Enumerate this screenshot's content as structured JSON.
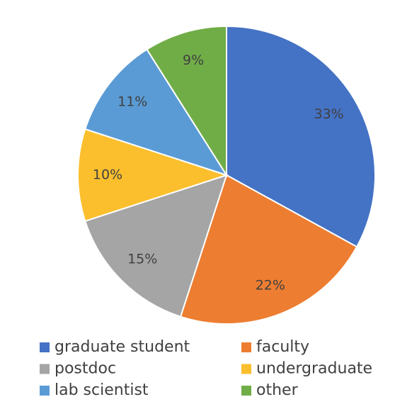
{
  "chart_data": {
    "type": "pie",
    "categories": [
      "graduate student",
      "faculty",
      "postdoc",
      "undergraduate",
      "lab scientist",
      "other"
    ],
    "values": [
      33,
      22,
      15,
      10,
      11,
      9
    ],
    "value_labels": [
      "33%",
      "22%",
      "15%",
      "10%",
      "11%",
      "9%"
    ],
    "colors": [
      "#4472c4",
      "#ed7d31",
      "#a5a5a5",
      "#fbbf2d",
      "#5b9bd5",
      "#70ad47"
    ],
    "legend": "bottom"
  }
}
